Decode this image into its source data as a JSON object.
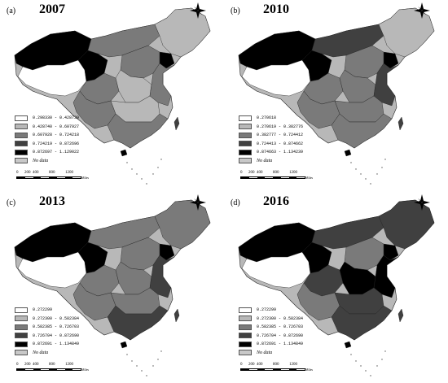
{
  "colors": {
    "c1": "#ffffff",
    "c2": "#b8b8b8",
    "c3": "#7a7a7a",
    "c4": "#404040",
    "c5": "#000000",
    "nodata": "#c8c8c8"
  },
  "scale": {
    "ticks": [
      "0",
      "200",
      "400",
      "800",
      "1200"
    ],
    "unit": "Miles"
  },
  "panels": [
    {
      "letter": "(a)",
      "year": "2007",
      "legend": [
        "0.298330 - 0.428739",
        "0.428740 - 0.607927",
        "0.607928 - 0.724218",
        "0.724219 - 0.872696",
        "0.872697 - 1.129022",
        "No data"
      ]
    },
    {
      "letter": "(b)",
      "year": "2010",
      "legend": [
        "0.270618",
        "0.270619 - 0.382776",
        "0.382777 - 0.724412",
        "0.724413 - 0.874662",
        "0.874663 - 1.134239",
        "No data"
      ]
    },
    {
      "letter": "(c)",
      "year": "2013",
      "legend": [
        "0.272299",
        "0.272300 - 0.582384",
        "0.582385 - 0.726703",
        "0.726704 - 0.872690",
        "0.872691 - 1.134849",
        "No data"
      ]
    },
    {
      "letter": "(d)",
      "year": "2016",
      "legend": [
        "0.272299",
        "0.272300 - 0.582384",
        "0.582385 - 0.726703",
        "0.726704 - 0.872690",
        "0.872691 - 1.134849",
        "No data"
      ]
    }
  ]
}
